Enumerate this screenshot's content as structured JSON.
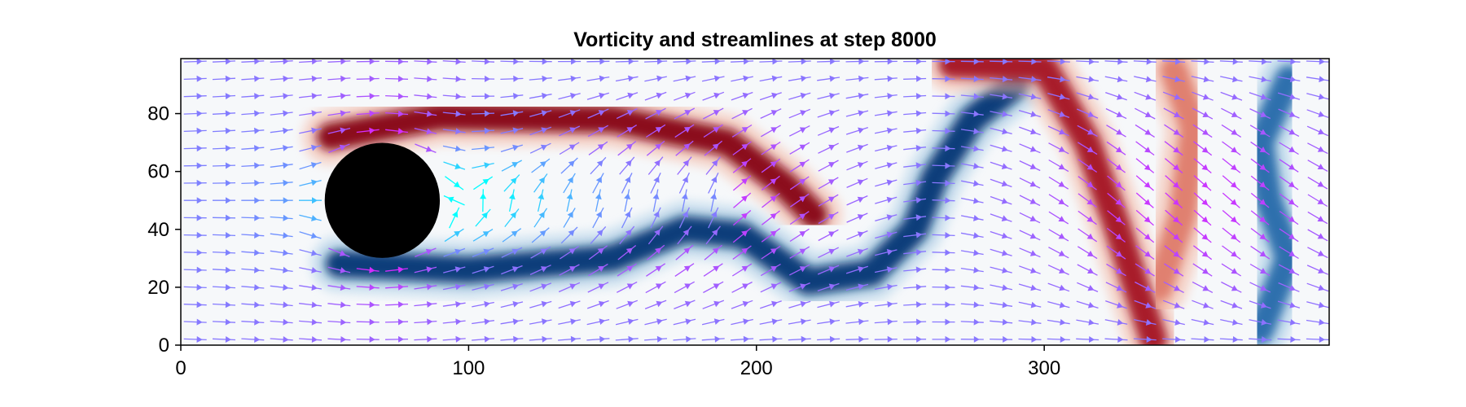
{
  "chart_data": {
    "type": "heatmap",
    "title": "Vorticity and streamlines at step 8000",
    "xlabel": "",
    "ylabel": "",
    "xlim": [
      0,
      399
    ],
    "ylim": [
      0,
      99
    ],
    "x_ticks": [
      {
        "value": 0,
        "label": "0"
      },
      {
        "value": 100,
        "label": "100"
      },
      {
        "value": 200,
        "label": "200"
      },
      {
        "value": 300,
        "label": "300"
      }
    ],
    "y_ticks": [
      {
        "value": 0,
        "label": "0"
      },
      {
        "value": 20,
        "label": "20"
      },
      {
        "value": 40,
        "label": "40"
      },
      {
        "value": 60,
        "label": "60"
      },
      {
        "value": 80,
        "label": "80"
      }
    ],
    "grid": false,
    "colormap": "diverging blue-white-red (RdBu reversed)",
    "arrow_colormap": "cool (cyan to magenta by speed)",
    "obstacle": {
      "shape": "circle",
      "center": [
        70,
        50
      ],
      "radius": 20,
      "color": "#000000"
    },
    "vortex_bands": [
      {
        "sign": "positive",
        "color": "#8b0a1c",
        "path": [
          [
            52,
            72
          ],
          [
            90,
            79
          ],
          [
            150,
            78
          ],
          [
            190,
            70
          ],
          [
            210,
            55
          ],
          [
            220,
            45
          ]
        ]
      },
      {
        "sign": "negative",
        "color": "#0a3d7a",
        "path": [
          [
            55,
            28
          ],
          [
            100,
            26
          ],
          [
            150,
            30
          ],
          [
            175,
            40
          ],
          [
            195,
            38
          ],
          [
            218,
            22
          ],
          [
            240,
            25
          ],
          [
            255,
            40
          ],
          [
            262,
            58
          ],
          [
            275,
            78
          ],
          [
            290,
            90
          ]
        ]
      },
      {
        "sign": "positive",
        "color": "#a81e2a",
        "path": [
          [
            268,
            97
          ],
          [
            300,
            96
          ],
          [
            315,
            70
          ],
          [
            325,
            42
          ],
          [
            332,
            20
          ],
          [
            338,
            2
          ]
        ]
      },
      {
        "sign": "negative",
        "color": "#2d6fad",
        "path": [
          [
            385,
            92
          ],
          [
            375,
            70
          ],
          [
            378,
            50
          ],
          [
            385,
            30
          ],
          [
            375,
            5
          ]
        ]
      },
      {
        "sign": "positive",
        "color": "#e08070",
        "path": [
          [
            345,
            95
          ],
          [
            352,
            75
          ],
          [
            348,
            45
          ],
          [
            340,
            20
          ]
        ]
      }
    ],
    "arrow_grid": {
      "x_spacing": 10,
      "y_spacing": 6
    }
  }
}
